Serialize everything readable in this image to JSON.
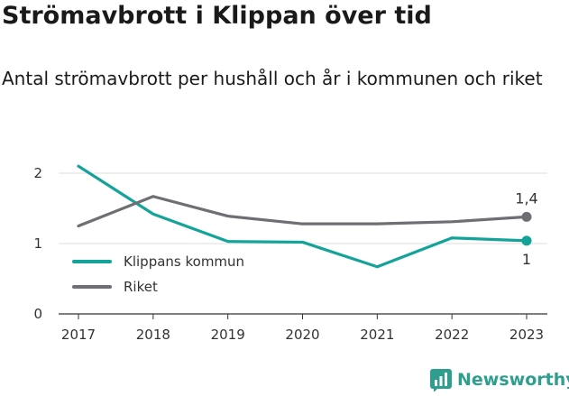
{
  "title": "Strömavbrott i Klippan över tid",
  "subtitle": "Antal strömavbrott per hushåll och år i kommunen och riket",
  "brand": "Newsworthy",
  "colors": {
    "klippan": "#14a399",
    "riket": "#6e6e73",
    "grid": "#dddddd",
    "axis": "#333333",
    "brand": "#2e9e8f"
  },
  "chart_data": {
    "type": "line",
    "x": [
      "2017",
      "2018",
      "2019",
      "2020",
      "2021",
      "2022",
      "2023"
    ],
    "ylim": [
      0,
      2.2
    ],
    "yticks": [
      "0",
      "1",
      "2"
    ],
    "grid": true,
    "legend": "bottom-left",
    "series": [
      {
        "name": "Klippans kommun",
        "key": "klippan",
        "values": [
          2.1,
          1.42,
          1.03,
          1.02,
          0.67,
          1.08,
          1.04
        ],
        "end_label": "1"
      },
      {
        "name": "Riket",
        "key": "riket",
        "values": [
          1.25,
          1.67,
          1.39,
          1.28,
          1.28,
          1.31,
          1.38
        ],
        "end_label": "1,4"
      }
    ]
  }
}
